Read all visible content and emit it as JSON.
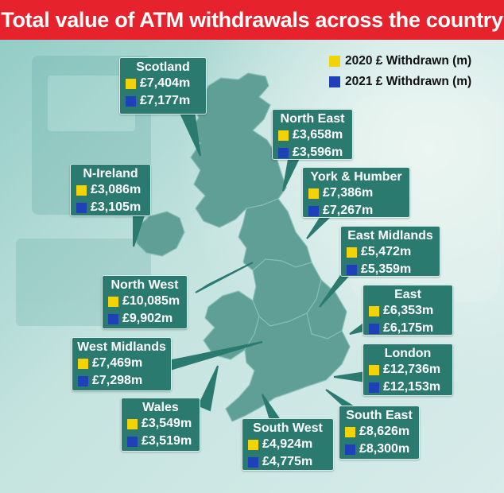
{
  "title": "Total value of ATM withdrawals across the country",
  "colors": {
    "accent_red": "#e6232c",
    "year_2020": "#f2d406",
    "year_2021": "#1e40b8",
    "box": "#2a7a70",
    "land": "#5f9f95"
  },
  "legend": [
    {
      "label": "2020 £ Withdrawn (m)",
      "color": "#f2d406"
    },
    {
      "label": "2021 £ Withdrawn (m)",
      "color": "#1e40b8"
    }
  ],
  "regions": [
    {
      "name": "Scotland",
      "v2020": "£7,404m",
      "v2021": "£7,177m"
    },
    {
      "name": "North East",
      "v2020": "£3,658m",
      "v2021": "£3,596m"
    },
    {
      "name": "N-Ireland",
      "v2020": "£3,086m",
      "v2021": "£3,105m"
    },
    {
      "name": "York & Humber",
      "v2020": "£7,386m",
      "v2021": "£7,267m"
    },
    {
      "name": "East Midlands",
      "v2020": "£5,472m",
      "v2021": "£5,359m"
    },
    {
      "name": "North West",
      "v2020": "£10,085m",
      "v2021": "£9,902m"
    },
    {
      "name": "East",
      "v2020": "£6,353m",
      "v2021": "£6,175m"
    },
    {
      "name": "West Midlands",
      "v2020": "£7,469m",
      "v2021": "£7,298m"
    },
    {
      "name": "London",
      "v2020": "£12,736m",
      "v2021": "£12,153m"
    },
    {
      "name": "Wales",
      "v2020": "£3,549m",
      "v2021": "£3,519m"
    },
    {
      "name": "South West",
      "v2020": "£4,924m",
      "v2021": "£4,775m"
    },
    {
      "name": "South East",
      "v2020": "£8,626m",
      "v2021": "£8,300m"
    }
  ]
}
